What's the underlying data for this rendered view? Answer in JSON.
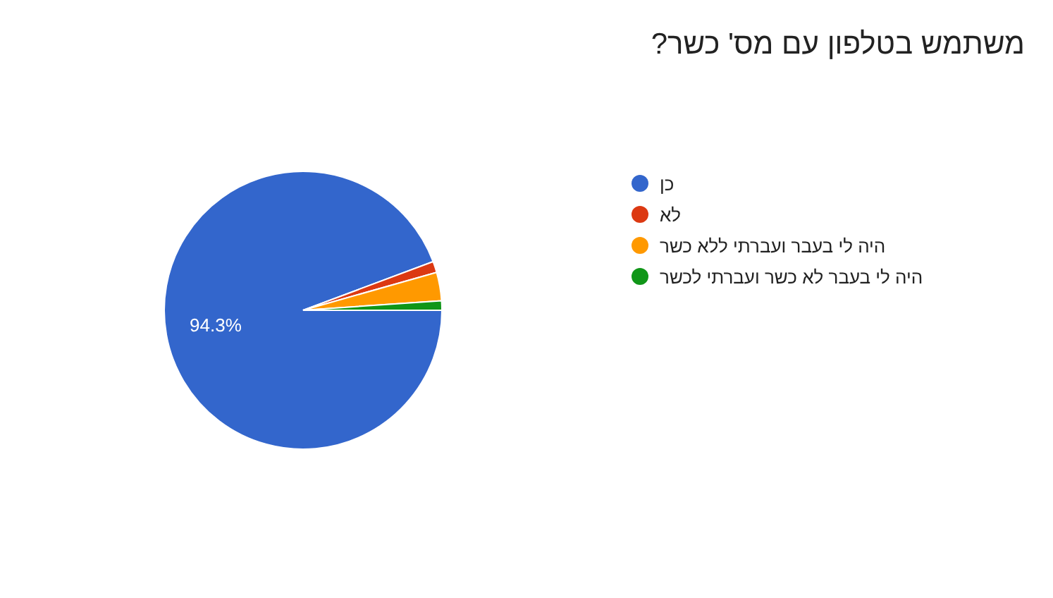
{
  "chart_data": {
    "type": "pie",
    "title": "משתמש בטלפון עם מס' כשר?",
    "categories": [
      "כן",
      "לא",
      "היה לי בעבר ועברתי ללא כשר",
      "היה לי בעבר לא כשר ועברתי לכשר"
    ],
    "values": [
      94.3,
      1.3,
      3.3,
      1.1
    ],
    "colors": [
      "#3366cc",
      "#dc3912",
      "#ff9900",
      "#109618"
    ],
    "value_labels": [
      "94.3%",
      null,
      null,
      null
    ],
    "legend": "right"
  }
}
